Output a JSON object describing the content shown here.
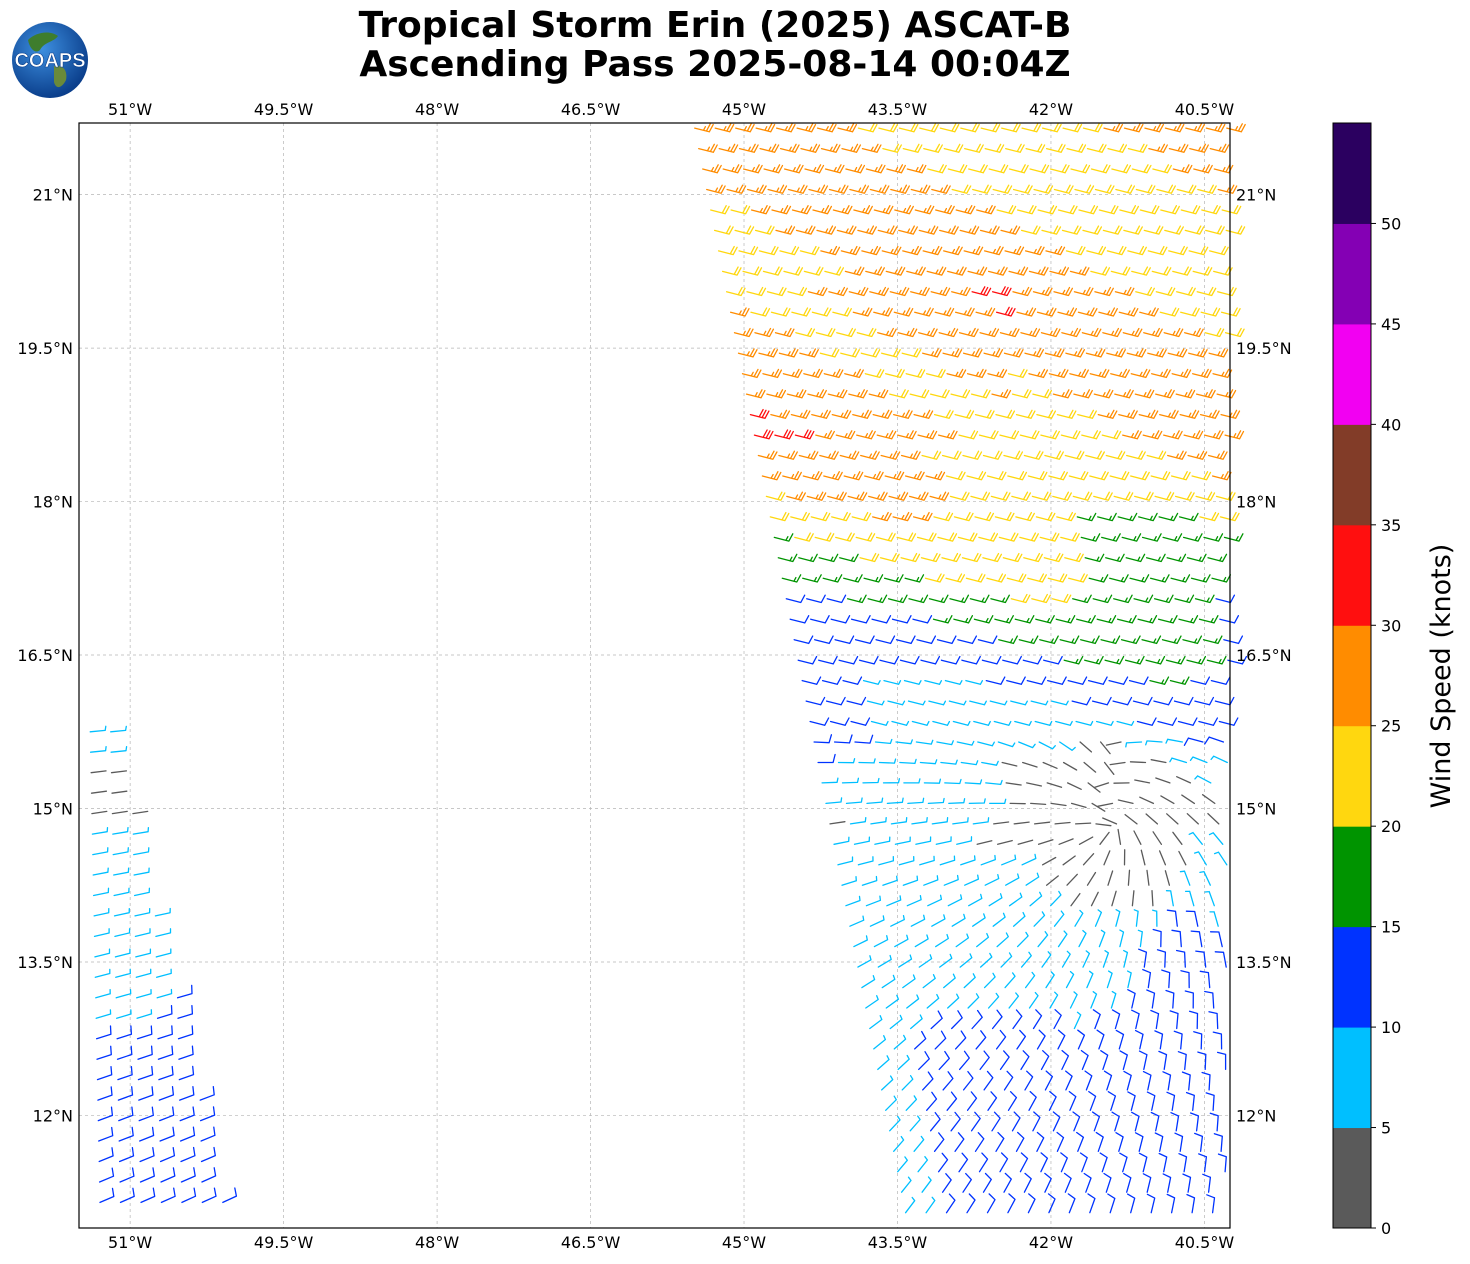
{
  "title": {
    "line1": "Tropical Storm Erin (2025) ASCAT-B",
    "line2": "Ascending Pass 2025-08-14 00:04Z"
  },
  "logo": {
    "text": "COAPS",
    "icon": "globe-icon"
  },
  "map": {
    "lon_range": [
      -51.5,
      -40.25
    ],
    "lat_range": [
      10.9,
      21.7
    ],
    "lon_ticks": [
      {
        "value": -51.0,
        "label": "51°W"
      },
      {
        "value": -49.5,
        "label": "49.5°W"
      },
      {
        "value": -48.0,
        "label": "48°W"
      },
      {
        "value": -46.5,
        "label": "46.5°W"
      },
      {
        "value": -45.0,
        "label": "45°W"
      },
      {
        "value": -43.5,
        "label": "43.5°W"
      },
      {
        "value": -42.0,
        "label": "42°W"
      },
      {
        "value": -40.5,
        "label": "40.5°W"
      }
    ],
    "lat_ticks": [
      {
        "value": 21.0,
        "label": "21°N"
      },
      {
        "value": 19.5,
        "label": "19.5°N"
      },
      {
        "value": 18.0,
        "label": "18°N"
      },
      {
        "value": 16.5,
        "label": "16.5°N"
      },
      {
        "value": 15.0,
        "label": "15°N"
      },
      {
        "value": 13.5,
        "label": "13.5°N"
      },
      {
        "value": 12.0,
        "label": "12°N"
      }
    ],
    "gridlines": true,
    "storm_center": {
      "lon": -41.5,
      "lat": 14.8
    },
    "swaths": [
      {
        "name": "east",
        "lat_range": [
          10.9,
          21.7
        ],
        "lon_west_at_top": -45.6,
        "lon_west_at_bottom": -43.5,
        "lon_east": -40.25
      },
      {
        "name": "west",
        "lat_range": [
          11.0,
          15.8
        ],
        "lon_west_at_top": -51.5,
        "lon_west_at_bottom": -51.4,
        "lon_east_at_top": -51.2,
        "lon_east_at_bottom": -50.1
      }
    ]
  },
  "colorbar": {
    "label": "Wind Speed (knots)",
    "bins": [
      {
        "min": 0,
        "max": 5,
        "color": "#5a5a5a"
      },
      {
        "min": 5,
        "max": 10,
        "color": "#00bfff"
      },
      {
        "min": 10,
        "max": 15,
        "color": "#0033ff"
      },
      {
        "min": 15,
        "max": 20,
        "color": "#009400"
      },
      {
        "min": 20,
        "max": 25,
        "color": "#ffd70f"
      },
      {
        "min": 25,
        "max": 30,
        "color": "#ff8c00"
      },
      {
        "min": 30,
        "max": 35,
        "color": "#ff0f0f"
      },
      {
        "min": 35,
        "max": 40,
        "color": "#823c28"
      },
      {
        "min": 40,
        "max": 45,
        "color": "#f200f2"
      },
      {
        "min": 45,
        "max": 50,
        "color": "#8400b4"
      },
      {
        "min": 50,
        "max": 55,
        "color": "#2b0060"
      }
    ],
    "tick_labels": [
      "0",
      "5",
      "10",
      "15",
      "20",
      "25",
      "30",
      "35",
      "40",
      "45",
      "50"
    ]
  }
}
